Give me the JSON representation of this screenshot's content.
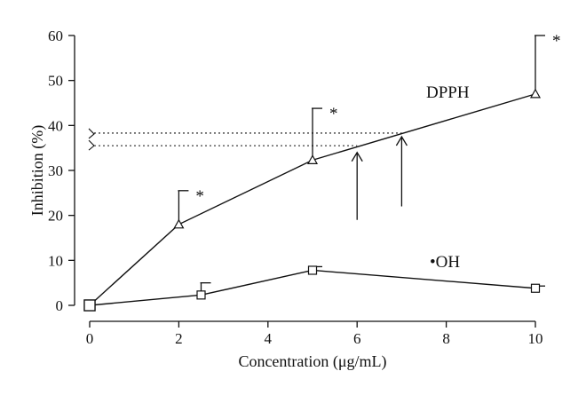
{
  "chart_data": {
    "type": "line",
    "title": "",
    "xlabel": "Concentration (μg/mL)",
    "ylabel": "Inhibition (%)",
    "xlim": [
      0,
      10
    ],
    "ylim": [
      0,
      60
    ],
    "xticks": [
      0,
      2,
      4,
      6,
      8,
      10
    ],
    "yticks": [
      0,
      10,
      20,
      30,
      40,
      50,
      60
    ],
    "grid": false,
    "series": [
      {
        "name": "DPPH",
        "marker": "triangle",
        "x": [
          0,
          2,
          5,
          10
        ],
        "y": [
          0,
          18,
          32.3,
          47
        ],
        "error_upper": [
          0,
          25.5,
          43.8,
          60
        ],
        "significant": [
          false,
          true,
          true,
          true
        ]
      },
      {
        "name": "•OH",
        "marker": "square",
        "x": [
          0,
          2.5,
          5,
          10
        ],
        "y": [
          0,
          2.3,
          7.8,
          3.8
        ],
        "error_upper": [
          0,
          5,
          8.6,
          4.3
        ],
        "significant": [
          false,
          false,
          false,
          false
        ]
      }
    ],
    "annotations": {
      "significance_symbol": "*",
      "ic_reference_lines": [
        {
          "y": 38.3,
          "x_end": 7
        },
        {
          "y": 35.5,
          "x_end": 6
        }
      ],
      "arrows": [
        {
          "x": 6,
          "y_from": 19,
          "y_to": 34
        },
        {
          "x": 7,
          "y_from": 22,
          "y_to": 37.5
        }
      ]
    }
  }
}
